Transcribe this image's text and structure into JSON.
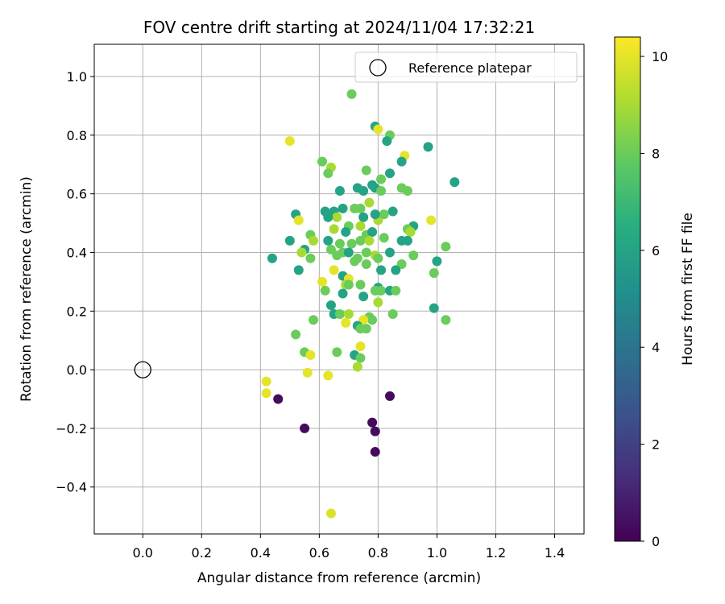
{
  "chart_data": {
    "type": "scatter",
    "title": "FOV centre drift starting at 2024/11/04 17:32:21",
    "xlabel": "Angular distance from reference (arcmin)",
    "ylabel": "Rotation from reference (arcmin)",
    "xlim": [
      -0.165,
      1.5
    ],
    "ylim": [
      -0.56,
      1.11
    ],
    "xticks": [
      0.0,
      0.2,
      0.4,
      0.6,
      0.8,
      1.0,
      1.2,
      1.4
    ],
    "xtick_labels": [
      "0.0",
      "0.2",
      "0.4",
      "0.6",
      "0.8",
      "1.0",
      "1.2",
      "1.4"
    ],
    "yticks": [
      -0.4,
      -0.2,
      0.0,
      0.2,
      0.4,
      0.6,
      0.8,
      1.0
    ],
    "ytick_labels": [
      "−0.4",
      "−0.2",
      "0.0",
      "0.2",
      "0.4",
      "0.6",
      "0.8",
      "1.0"
    ],
    "grid": true,
    "legend": {
      "position": "top-right",
      "entries": [
        "Reference platepar"
      ]
    },
    "reference_point": {
      "x": 0.0,
      "y": 0.0
    },
    "colorbar": {
      "label": "Hours from first FF file",
      "colormap": "viridis",
      "range": [
        0,
        10.4
      ],
      "ticks": [
        0,
        2,
        4,
        6,
        8,
        10
      ],
      "tick_labels": [
        "0",
        "2",
        "4",
        "6",
        "8",
        "10"
      ]
    },
    "points": [
      [
        0.71,
        0.94,
        8
      ],
      [
        0.79,
        0.83,
        6
      ],
      [
        0.8,
        0.82,
        10
      ],
      [
        0.84,
        0.8,
        8
      ],
      [
        0.83,
        0.78,
        6
      ],
      [
        0.97,
        0.76,
        6
      ],
      [
        0.5,
        0.78,
        10
      ],
      [
        0.89,
        0.73,
        10
      ],
      [
        0.88,
        0.71,
        6
      ],
      [
        0.61,
        0.71,
        8
      ],
      [
        0.64,
        0.69,
        9
      ],
      [
        0.63,
        0.67,
        8
      ],
      [
        0.76,
        0.68,
        8
      ],
      [
        0.84,
        0.67,
        6
      ],
      [
        0.81,
        0.65,
        8
      ],
      [
        1.06,
        0.64,
        6
      ],
      [
        0.78,
        0.63,
        6
      ],
      [
        0.73,
        0.62,
        6
      ],
      [
        0.79,
        0.62,
        6
      ],
      [
        0.67,
        0.61,
        6
      ],
      [
        0.75,
        0.61,
        6
      ],
      [
        0.81,
        0.61,
        8
      ],
      [
        0.88,
        0.62,
        8
      ],
      [
        0.9,
        0.61,
        8
      ],
      [
        0.77,
        0.57,
        9
      ],
      [
        0.68,
        0.55,
        6
      ],
      [
        0.72,
        0.55,
        8
      ],
      [
        0.74,
        0.55,
        8
      ],
      [
        0.62,
        0.54,
        6
      ],
      [
        0.65,
        0.54,
        6
      ],
      [
        0.85,
        0.54,
        6
      ],
      [
        0.52,
        0.53,
        6
      ],
      [
        0.66,
        0.52,
        9
      ],
      [
        0.75,
        0.52,
        6
      ],
      [
        0.8,
        0.51,
        9
      ],
      [
        0.82,
        0.53,
        8
      ],
      [
        0.79,
        0.53,
        6
      ],
      [
        0.98,
        0.51,
        10
      ],
      [
        0.53,
        0.51,
        10
      ],
      [
        0.63,
        0.52,
        6
      ],
      [
        0.92,
        0.49,
        6
      ],
      [
        0.7,
        0.49,
        8
      ],
      [
        0.74,
        0.49,
        9
      ],
      [
        0.69,
        0.47,
        6
      ],
      [
        0.76,
        0.46,
        8
      ],
      [
        0.78,
        0.47,
        6
      ],
      [
        0.65,
        0.48,
        9
      ],
      [
        0.9,
        0.48,
        8
      ],
      [
        0.91,
        0.47,
        9
      ],
      [
        0.57,
        0.46,
        8
      ],
      [
        0.58,
        0.44,
        9
      ],
      [
        0.5,
        0.44,
        6
      ],
      [
        0.63,
        0.44,
        6
      ],
      [
        0.71,
        0.43,
        8
      ],
      [
        0.67,
        0.43,
        8
      ],
      [
        0.74,
        0.44,
        8
      ],
      [
        0.82,
        0.45,
        8
      ],
      [
        0.88,
        0.44,
        6
      ],
      [
        0.9,
        0.44,
        6
      ],
      [
        0.77,
        0.44,
        9
      ],
      [
        1.03,
        0.42,
        8
      ],
      [
        0.55,
        0.41,
        6
      ],
      [
        0.64,
        0.41,
        8
      ],
      [
        0.68,
        0.4,
        8
      ],
      [
        0.7,
        0.4,
        6
      ],
      [
        0.76,
        0.4,
        8
      ],
      [
        0.79,
        0.39,
        9
      ],
      [
        0.84,
        0.4,
        6
      ],
      [
        0.92,
        0.39,
        8
      ],
      [
        0.44,
        0.38,
        6
      ],
      [
        0.54,
        0.4,
        9
      ],
      [
        0.57,
        0.38,
        8
      ],
      [
        0.66,
        0.39,
        8
      ],
      [
        0.72,
        0.37,
        8
      ],
      [
        0.73,
        0.38,
        8
      ],
      [
        0.8,
        0.38,
        8
      ],
      [
        0.88,
        0.36,
        8
      ],
      [
        1.0,
        0.37,
        6
      ],
      [
        0.53,
        0.34,
        6
      ],
      [
        0.65,
        0.34,
        10
      ],
      [
        0.76,
        0.36,
        8
      ],
      [
        0.81,
        0.34,
        6
      ],
      [
        0.86,
        0.34,
        6
      ],
      [
        0.99,
        0.33,
        8
      ],
      [
        0.68,
        0.32,
        6
      ],
      [
        0.7,
        0.31,
        10
      ],
      [
        0.61,
        0.3,
        10
      ],
      [
        0.69,
        0.29,
        9
      ],
      [
        0.7,
        0.29,
        8
      ],
      [
        0.74,
        0.29,
        8
      ],
      [
        0.8,
        0.28,
        6
      ],
      [
        0.79,
        0.27,
        8
      ],
      [
        0.81,
        0.27,
        8
      ],
      [
        0.84,
        0.27,
        6
      ],
      [
        0.86,
        0.27,
        8
      ],
      [
        0.62,
        0.27,
        8
      ],
      [
        0.68,
        0.26,
        6
      ],
      [
        0.75,
        0.25,
        6
      ],
      [
        0.8,
        0.23,
        9
      ],
      [
        0.64,
        0.22,
        6
      ],
      [
        0.99,
        0.21,
        6
      ],
      [
        0.65,
        0.19,
        6
      ],
      [
        0.67,
        0.19,
        8
      ],
      [
        0.7,
        0.19,
        9
      ],
      [
        0.77,
        0.18,
        8
      ],
      [
        0.78,
        0.17,
        8
      ],
      [
        0.85,
        0.19,
        8
      ],
      [
        1.03,
        0.17,
        8
      ],
      [
        0.58,
        0.17,
        8
      ],
      [
        0.75,
        0.17,
        10
      ],
      [
        0.69,
        0.16,
        10
      ],
      [
        0.73,
        0.15,
        6
      ],
      [
        0.74,
        0.14,
        8
      ],
      [
        0.76,
        0.14,
        8
      ],
      [
        0.52,
        0.12,
        8
      ],
      [
        0.74,
        0.08,
        10
      ],
      [
        0.55,
        0.06,
        8
      ],
      [
        0.66,
        0.06,
        8
      ],
      [
        0.72,
        0.05,
        6
      ],
      [
        0.74,
        0.04,
        8
      ],
      [
        0.57,
        0.05,
        10
      ],
      [
        0.73,
        0.01,
        9
      ],
      [
        0.56,
        -0.01,
        10
      ],
      [
        0.63,
        -0.02,
        10
      ],
      [
        0.42,
        -0.04,
        10
      ],
      [
        0.42,
        -0.08,
        10
      ],
      [
        0.46,
        -0.1,
        0.3
      ],
      [
        0.84,
        -0.09,
        0.3
      ],
      [
        0.55,
        -0.2,
        0.3
      ],
      [
        0.78,
        -0.18,
        0.3
      ],
      [
        0.79,
        -0.21,
        0.3
      ],
      [
        0.79,
        -0.28,
        0.3
      ],
      [
        0.64,
        -0.49,
        9.8
      ]
    ]
  }
}
